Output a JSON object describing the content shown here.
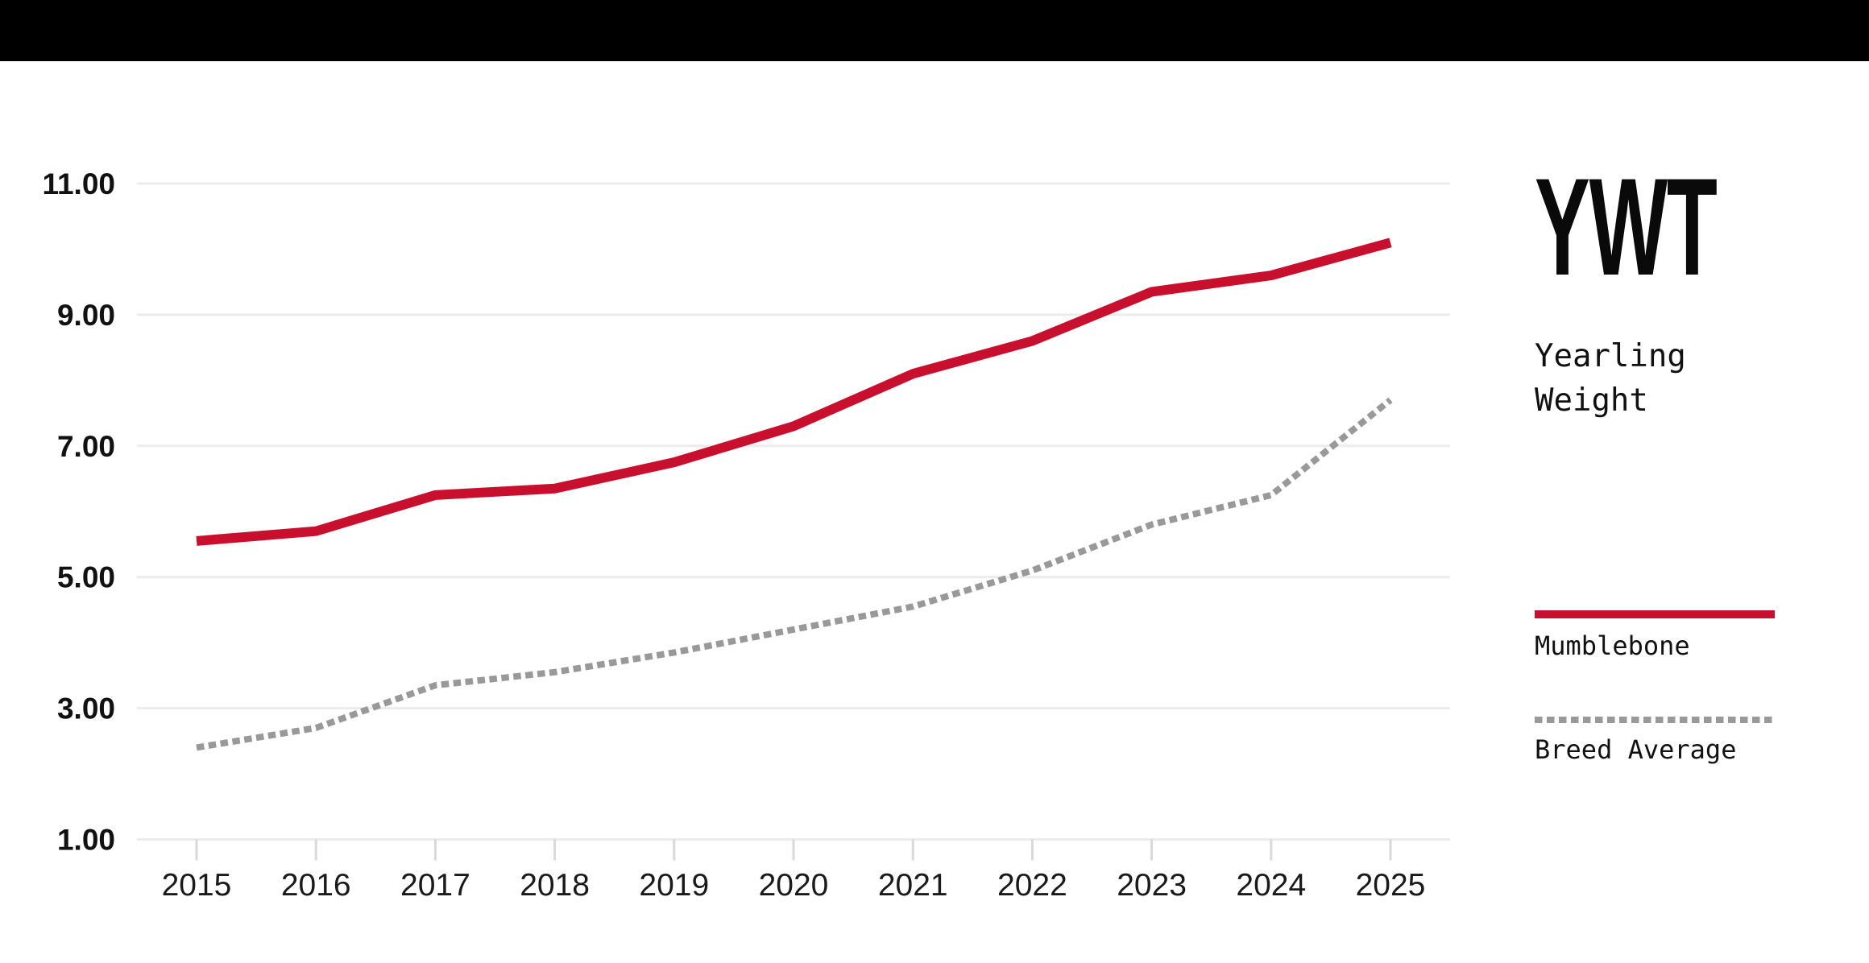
{
  "topbar": {
    "color": "#000000"
  },
  "panel": {
    "title": "YWT",
    "subtitle": "Yearling Weight"
  },
  "legend": {
    "items": [
      {
        "label": "Mumblebone",
        "style": "solid",
        "color": "#C8102E"
      },
      {
        "label": "Breed Average",
        "style": "dashed",
        "color": "#999999"
      }
    ]
  },
  "colors": {
    "accent_red": "#C8102E",
    "dash_gray": "#999999",
    "gridline": "#ececec",
    "tick": "#d9d9d9",
    "text": "#111111"
  },
  "chart_data": {
    "type": "line",
    "title": "YWT — Yearling Weight",
    "x": [
      2015,
      2016,
      2017,
      2018,
      2019,
      2020,
      2021,
      2022,
      2023,
      2024,
      2025
    ],
    "x_tick_labels": [
      "2015",
      "2016",
      "2017",
      "2018",
      "2019",
      "2020",
      "2021",
      "2022",
      "2023",
      "2024",
      "2025"
    ],
    "series": [
      {
        "name": "Mumblebone",
        "style": "solid",
        "color": "#C8102E",
        "values": [
          5.55,
          5.7,
          6.25,
          6.35,
          6.75,
          7.3,
          8.1,
          8.6,
          9.35,
          9.6,
          10.1
        ]
      },
      {
        "name": "Breed Average",
        "style": "dashed",
        "color": "#999999",
        "values": [
          2.4,
          2.7,
          3.35,
          3.55,
          3.85,
          4.2,
          4.55,
          5.1,
          5.8,
          6.25,
          7.7
        ]
      }
    ],
    "ylim": [
      1,
      11
    ],
    "yticks": [
      11,
      9,
      7,
      5,
      3,
      1
    ],
    "ytick_labels": [
      "11.00",
      "9.00",
      "7.00",
      "5.00",
      "3.00",
      "1.00"
    ],
    "xlabel": "",
    "ylabel": "",
    "grid": true,
    "legend_position": "right"
  }
}
